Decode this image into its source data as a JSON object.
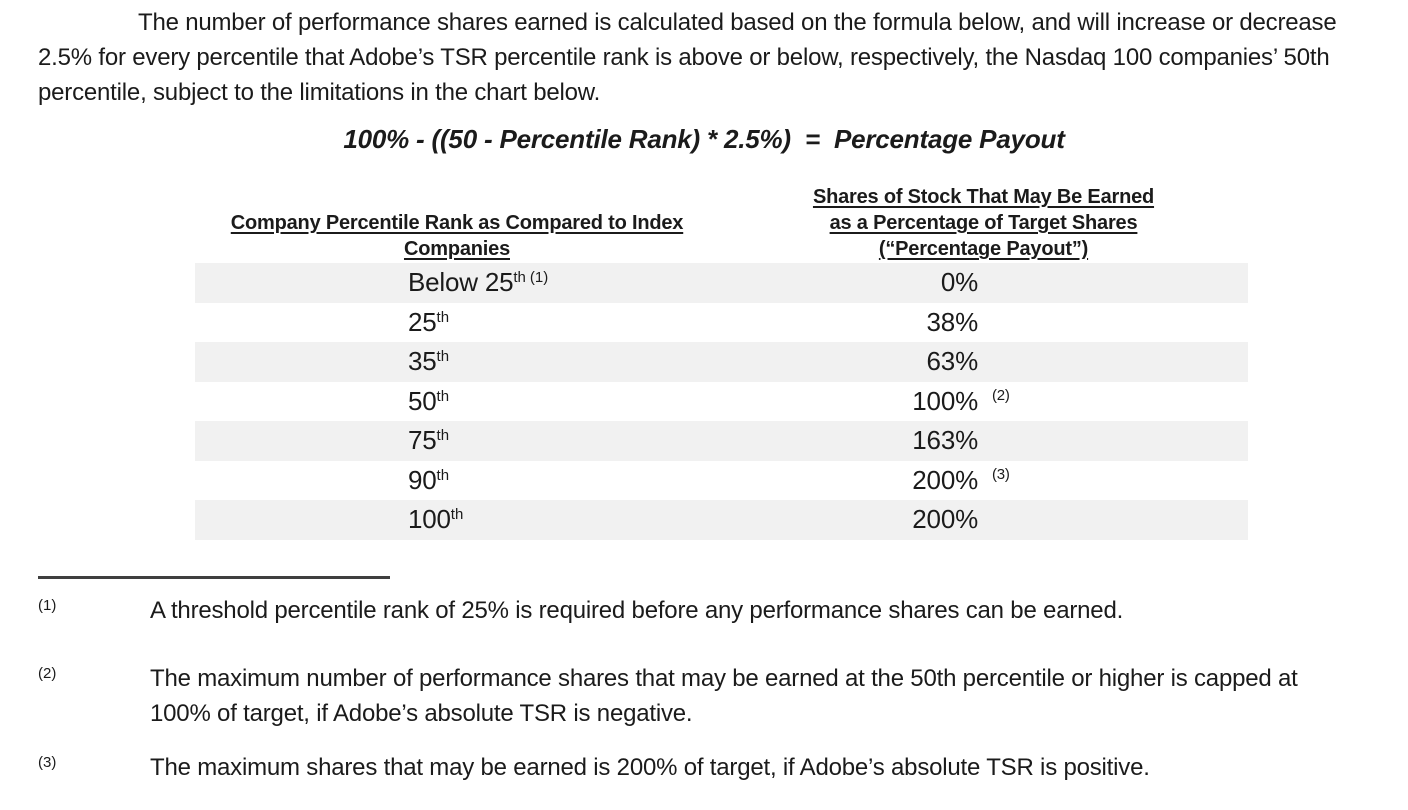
{
  "colors": {
    "text": "#1b1b1b",
    "row_shade": "#f1f1f1",
    "divider": "#3f3f3f"
  },
  "intro": {
    "line1": "The number of performance shares earned is calculated based on the formula below, and will increase or decrease",
    "line2": "2.5% for every percentile that Adobe’s TSR percentile rank is above or below, respectively, the Nasdaq 100 companies’ 50th",
    "line3": "percentile, subject to the limitations in the chart below."
  },
  "formula": "100% - ((50 - Percentile Rank) * 2.5%)  =  Percentage Payout",
  "table": {
    "col1_header_line1": "Company Percentile Rank as Compared to Index",
    "col1_header_line2": "Companies",
    "col2_header_line1": "Shares of Stock That May Be Earned",
    "col2_header_line2": "as a Percentage of Target Shares",
    "col2_header_line3": "(“Percentage Payout”)",
    "rows": [
      {
        "rank": "Below 25",
        "ord": "th",
        "rank_note": "(1)",
        "payout": "0%",
        "payout_note": ""
      },
      {
        "rank": "25",
        "ord": "th",
        "rank_note": "",
        "payout": "38%",
        "payout_note": ""
      },
      {
        "rank": "35",
        "ord": "th",
        "rank_note": "",
        "payout": "63%",
        "payout_note": ""
      },
      {
        "rank": "50",
        "ord": "th",
        "rank_note": "",
        "payout": "100%",
        "payout_note": "(2)"
      },
      {
        "rank": "75",
        "ord": "th",
        "rank_note": "",
        "payout": "163%",
        "payout_note": ""
      },
      {
        "rank": "90",
        "ord": "th",
        "rank_note": "",
        "payout": "200%",
        "payout_note": "(3)"
      },
      {
        "rank": "100",
        "ord": "th",
        "rank_note": "",
        "payout": "200%",
        "payout_note": ""
      }
    ]
  },
  "footnotes": [
    {
      "marker": "(1)",
      "line1": "A threshold percentile rank of 25% is required before any performance shares can be earned.",
      "line2": ""
    },
    {
      "marker": "(2)",
      "line1": "The maximum number of performance shares that may be earned at the 50th percentile or higher is capped at",
      "line2": "100% of target, if Adobe’s absolute TSR is negative."
    },
    {
      "marker": "(3)",
      "line1": "The maximum shares that may be earned is 200% of target, if Adobe’s absolute TSR is positive.",
      "line2": ""
    }
  ]
}
